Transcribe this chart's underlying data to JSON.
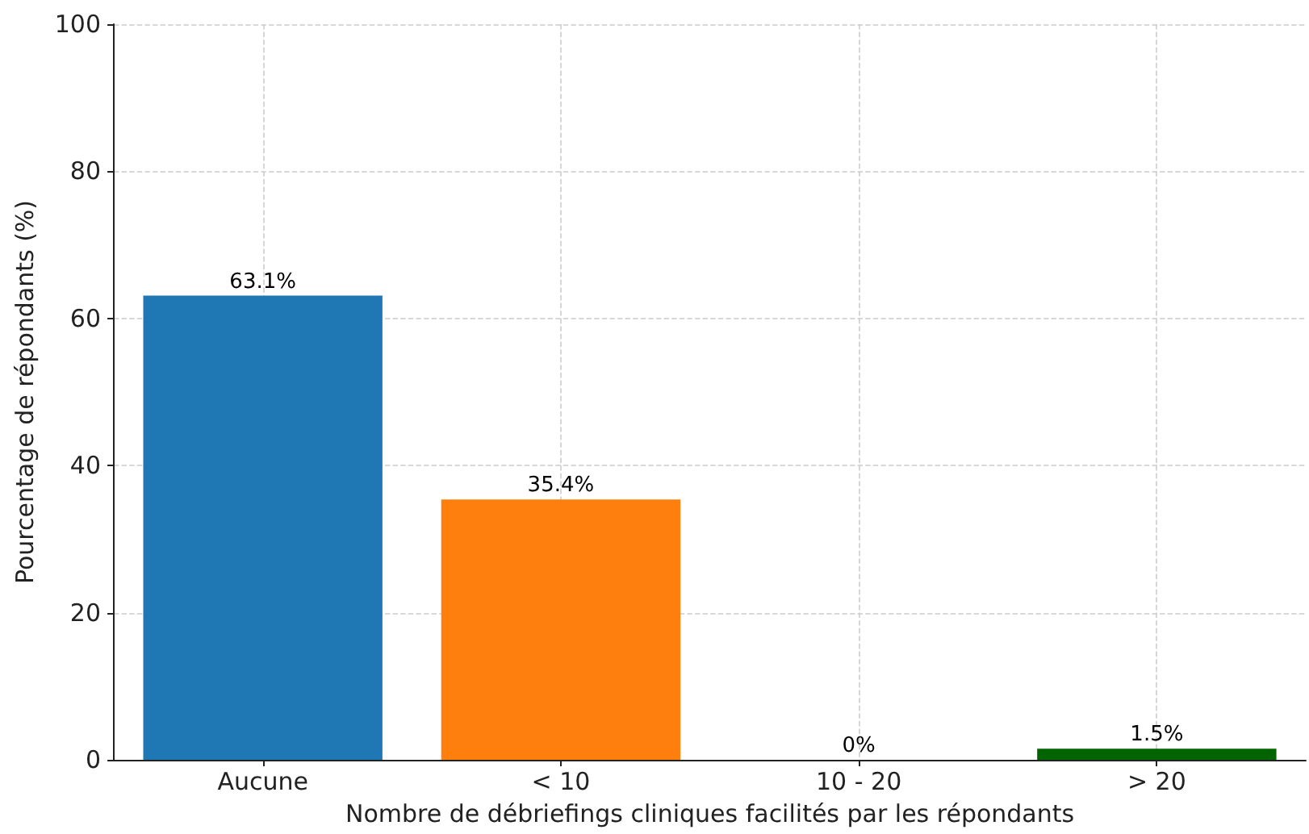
{
  "chart_data": {
    "type": "bar",
    "xlabel": "Nombre de débriefings cliniques facilités par les répondants",
    "ylabel": "Pourcentage de répondants (%)",
    "categories": [
      "Aucune",
      "< 10",
      "10 - 20",
      "> 20"
    ],
    "values": [
      63.1,
      35.4,
      0,
      1.5
    ],
    "colors": [
      "#1f77b4",
      "#ff7f0e",
      "#2ca02c",
      "#006400"
    ],
    "value_labels": [
      "63.1%",
      "35.4%",
      "0%",
      "1.5%"
    ],
    "ylim": [
      0,
      100
    ],
    "yticks": [
      0,
      20,
      40,
      60,
      80,
      100
    ],
    "grid": true
  }
}
